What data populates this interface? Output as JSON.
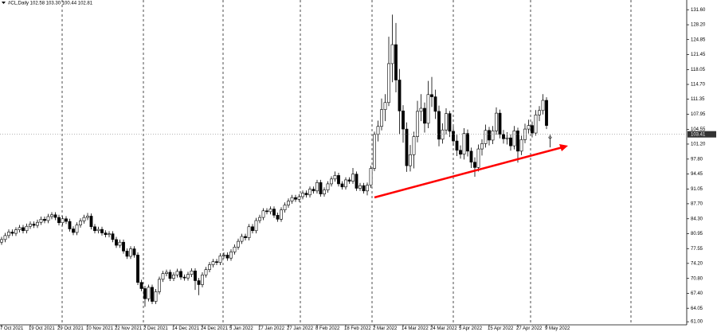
{
  "chart_data": {
    "type": "candlestick",
    "title": "#CL,Daily 102.58 103.30 100.44 102.81",
    "ylim": [
      60.3,
      133.8
    ],
    "yticks": [
      {
        "value": 131.6,
        "label": "131.60"
      },
      {
        "value": 128.2,
        "label": "128.20"
      },
      {
        "value": 124.85,
        "label": "124.85"
      },
      {
        "value": 121.45,
        "label": "121.45"
      },
      {
        "value": 118.05,
        "label": "118.05"
      },
      {
        "value": 114.7,
        "label": "114.70"
      },
      {
        "value": 111.35,
        "label": "111.35"
      },
      {
        "value": 107.95,
        "label": "107.95"
      },
      {
        "value": 104.55,
        "label": "104.55"
      },
      {
        "value": 101.2,
        "label": "101.20"
      },
      {
        "value": 97.8,
        "label": "97.80"
      },
      {
        "value": 94.45,
        "label": "94.45"
      },
      {
        "value": 91.05,
        "label": "91.05"
      },
      {
        "value": 87.7,
        "label": "87.70"
      },
      {
        "value": 84.3,
        "label": "84.30"
      },
      {
        "value": 80.95,
        "label": "80.95"
      },
      {
        "value": 77.55,
        "label": "77.55"
      },
      {
        "value": 74.2,
        "label": "74.20"
      },
      {
        "value": 70.8,
        "label": "70.80"
      },
      {
        "value": 67.4,
        "label": "67.40"
      },
      {
        "value": 64.05,
        "label": "64.05"
      },
      {
        "value": 61.0,
        "label": "61.00"
      }
    ],
    "last_price": {
      "value": 103.41,
      "label": "103.41"
    },
    "categories": [
      "7 Oct 2021",
      null,
      null,
      null,
      null,
      null,
      null,
      null,
      "19 Oct 2021",
      null,
      null,
      null,
      null,
      null,
      null,
      null,
      "29 Oct 2021",
      null,
      null,
      null,
      null,
      null,
      null,
      null,
      "10 Nov 2021",
      null,
      null,
      null,
      null,
      null,
      null,
      null,
      "22 Nov 2021",
      null,
      null,
      null,
      null,
      null,
      null,
      null,
      "2 Dec 2021",
      null,
      null,
      null,
      null,
      null,
      null,
      null,
      "14 Dec 2021",
      null,
      null,
      null,
      null,
      null,
      null,
      null,
      "24 Dec 2021",
      null,
      null,
      null,
      null,
      null,
      null,
      null,
      "5 Jan 2022",
      null,
      null,
      null,
      null,
      null,
      null,
      null,
      "17 Jan 2022",
      null,
      null,
      null,
      null,
      null,
      null,
      null,
      "27 Jan 2022",
      null,
      null,
      null,
      null,
      null,
      null,
      null,
      "8 Feb 2022",
      null,
      null,
      null,
      null,
      null,
      null,
      null,
      "18 Feb 2022",
      null,
      null,
      null,
      null,
      null,
      null,
      null,
      "2 Mar 2022",
      null,
      null,
      null,
      null,
      null,
      null,
      null,
      "14 Mar 2022",
      null,
      null,
      null,
      null,
      null,
      null,
      null,
      "24 Mar 2022",
      null,
      null,
      null,
      null,
      null,
      null,
      null,
      "5 Apr 2022",
      null,
      null,
      null,
      null,
      null,
      null,
      null,
      "15 Apr 2022",
      null,
      null,
      null,
      null,
      null,
      null,
      null,
      "27 Apr 2022",
      null,
      null,
      null,
      null,
      null,
      null,
      null,
      "9 May 2022",
      null
    ],
    "ohlc": [
      [
        79.0,
        80.2,
        78.4,
        79.6
      ],
      [
        79.6,
        81.1,
        79.0,
        80.5
      ],
      [
        80.5,
        81.9,
        79.9,
        81.3
      ],
      [
        81.3,
        81.9,
        80.4,
        81.0
      ],
      [
        81.0,
        82.4,
        80.4,
        81.8
      ],
      [
        81.8,
        82.9,
        81.2,
        82.3
      ],
      [
        82.3,
        82.9,
        81.0,
        81.6
      ],
      [
        81.6,
        83.2,
        81.0,
        82.6
      ],
      [
        82.6,
        83.7,
        82.0,
        83.1
      ],
      [
        83.1,
        83.7,
        82.2,
        82.8
      ],
      [
        82.8,
        84.1,
        82.2,
        83.5
      ],
      [
        83.5,
        84.8,
        82.9,
        84.2
      ],
      [
        84.2,
        84.8,
        83.3,
        83.9
      ],
      [
        83.9,
        85.4,
        83.3,
        84.8
      ],
      [
        84.8,
        85.8,
        84.2,
        85.2
      ],
      [
        85.2,
        85.8,
        84.0,
        84.6
      ],
      [
        84.6,
        85.2,
        82.8,
        83.4
      ],
      [
        83.4,
        84.9,
        82.8,
        84.3
      ],
      [
        84.3,
        84.9,
        83.1,
        83.7
      ],
      [
        83.7,
        84.3,
        81.4,
        82.0
      ],
      [
        82.0,
        82.6,
        80.6,
        81.2
      ],
      [
        81.2,
        83.5,
        80.6,
        82.9
      ],
      [
        82.9,
        84.4,
        82.3,
        83.8
      ],
      [
        83.8,
        85.2,
        83.2,
        84.6
      ],
      [
        84.6,
        85.6,
        84.0,
        84.9
      ],
      [
        84.9,
        85.5,
        81.9,
        82.5
      ],
      [
        82.5,
        83.1,
        81.0,
        81.6
      ],
      [
        81.6,
        82.5,
        81.0,
        81.9
      ],
      [
        81.9,
        82.5,
        80.5,
        81.1
      ],
      [
        81.1,
        81.7,
        80.1,
        80.7
      ],
      [
        80.7,
        81.5,
        80.1,
        80.9
      ],
      [
        80.9,
        81.5,
        79.0,
        79.6
      ],
      [
        79.6,
        80.2,
        77.7,
        78.3
      ],
      [
        78.3,
        79.6,
        77.7,
        79.0
      ],
      [
        79.0,
        79.6,
        76.4,
        77.0
      ],
      [
        77.0,
        77.6,
        75.2,
        75.8
      ],
      [
        75.8,
        78.1,
        75.2,
        77.5
      ],
      [
        77.5,
        78.1,
        75.5,
        76.1
      ],
      [
        76.1,
        76.7,
        69.3,
        69.9
      ],
      [
        69.9,
        70.5,
        67.9,
        68.5
      ],
      [
        68.5,
        69.1,
        64.4,
        66.2
      ],
      [
        66.2,
        69.4,
        65.6,
        68.8
      ],
      [
        68.8,
        69.4,
        65.0,
        65.6
      ],
      [
        65.6,
        68.4,
        65.0,
        67.8
      ],
      [
        67.8,
        71.2,
        67.2,
        70.6
      ],
      [
        70.6,
        72.5,
        70.0,
        71.9
      ],
      [
        71.9,
        72.8,
        71.3,
        72.2
      ],
      [
        72.2,
        72.8,
        70.2,
        70.8
      ],
      [
        70.8,
        72.2,
        70.2,
        71.6
      ],
      [
        71.6,
        73.0,
        71.0,
        72.4
      ],
      [
        72.4,
        73.0,
        70.5,
        71.1
      ],
      [
        71.1,
        71.7,
        70.3,
        70.9
      ],
      [
        70.9,
        72.3,
        70.3,
        71.7
      ],
      [
        71.7,
        73.1,
        71.1,
        72.5
      ],
      [
        72.5,
        73.1,
        68.2,
        70.3
      ],
      [
        70.3,
        70.9,
        67.0,
        69.4
      ],
      [
        69.4,
        72.2,
        68.8,
        71.6
      ],
      [
        71.6,
        73.4,
        71.0,
        72.8
      ],
      [
        72.8,
        74.5,
        72.2,
        73.9
      ],
      [
        73.9,
        75.2,
        73.3,
        74.6
      ],
      [
        74.6,
        75.2,
        73.8,
        74.4
      ],
      [
        74.4,
        76.5,
        73.8,
        75.9
      ],
      [
        75.9,
        76.7,
        75.3,
        76.1
      ],
      [
        76.1,
        76.7,
        74.8,
        75.4
      ],
      [
        75.4,
        77.4,
        74.8,
        76.8
      ],
      [
        76.8,
        78.5,
        76.2,
        77.9
      ],
      [
        77.9,
        79.8,
        77.3,
        79.2
      ],
      [
        79.2,
        80.9,
        78.6,
        80.3
      ],
      [
        80.3,
        80.9,
        79.4,
        80.0
      ],
      [
        80.0,
        83.1,
        79.4,
        82.5
      ],
      [
        82.5,
        83.1,
        81.0,
        81.6
      ],
      [
        81.6,
        84.5,
        81.0,
        83.9
      ],
      [
        83.9,
        85.2,
        83.3,
        84.6
      ],
      [
        84.6,
        86.7,
        84.0,
        86.1
      ],
      [
        86.1,
        86.7,
        85.3,
        85.9
      ],
      [
        85.9,
        87.1,
        85.3,
        86.5
      ],
      [
        86.5,
        87.1,
        84.5,
        85.1
      ],
      [
        85.1,
        85.7,
        83.6,
        84.2
      ],
      [
        84.2,
        86.9,
        83.6,
        86.3
      ],
      [
        86.3,
        88.0,
        85.7,
        87.4
      ],
      [
        87.4,
        88.9,
        86.8,
        88.3
      ],
      [
        88.3,
        89.7,
        87.7,
        89.1
      ],
      [
        89.1,
        89.7,
        88.1,
        88.7
      ],
      [
        88.7,
        89.9,
        88.1,
        89.3
      ],
      [
        89.3,
        90.7,
        88.7,
        90.1
      ],
      [
        90.1,
        90.7,
        89.1,
        89.7
      ],
      [
        89.7,
        91.6,
        89.1,
        91.0
      ],
      [
        91.0,
        91.6,
        90.0,
        90.6
      ],
      [
        90.6,
        93.1,
        90.0,
        92.5
      ],
      [
        92.5,
        93.1,
        89.3,
        89.9
      ],
      [
        89.9,
        91.4,
        89.3,
        90.8
      ],
      [
        90.8,
        92.8,
        90.2,
        92.2
      ],
      [
        92.2,
        93.9,
        91.6,
        93.3
      ],
      [
        93.3,
        95.0,
        92.7,
        94.1
      ],
      [
        94.1,
        94.7,
        91.6,
        92.2
      ],
      [
        92.2,
        92.8,
        90.9,
        91.5
      ],
      [
        91.5,
        93.7,
        90.9,
        93.1
      ],
      [
        93.1,
        93.7,
        92.2,
        92.8
      ],
      [
        92.8,
        95.8,
        92.2,
        94.4
      ],
      [
        94.4,
        95.0,
        90.6,
        91.2
      ],
      [
        91.2,
        92.4,
        90.6,
        91.8
      ],
      [
        91.8,
        92.4,
        90.0,
        90.6
      ],
      [
        90.6,
        92.5,
        89.6,
        91.9
      ],
      [
        91.9,
        96.3,
        91.3,
        95.7
      ],
      [
        95.7,
        104.0,
        95.1,
        103.4
      ],
      [
        103.4,
        106.5,
        101.8,
        105.2
      ],
      [
        105.2,
        111.5,
        104.3,
        109.0
      ],
      [
        109.0,
        112.5,
        106.4,
        110.6
      ],
      [
        110.6,
        125.5,
        109.8,
        119.4
      ],
      [
        119.4,
        130.5,
        115.2,
        123.7
      ],
      [
        123.7,
        128.6,
        112.9,
        115.7
      ],
      [
        115.7,
        118.2,
        103.5,
        108.7
      ],
      [
        108.7,
        110.0,
        101.5,
        104.6
      ],
      [
        104.6,
        106.1,
        94.9,
        96.3
      ],
      [
        96.3,
        101.0,
        95.0,
        98.8
      ],
      [
        98.8,
        104.0,
        95.7,
        102.9
      ],
      [
        102.9,
        111.0,
        101.6,
        108.6
      ],
      [
        108.6,
        112.5,
        106.4,
        109.3
      ],
      [
        109.3,
        110.6,
        103.8,
        105.9
      ],
      [
        105.9,
        115.5,
        104.8,
        112.4
      ],
      [
        112.4,
        116.4,
        109.6,
        111.9
      ],
      [
        111.9,
        113.5,
        106.9,
        108.6
      ],
      [
        108.6,
        109.9,
        100.7,
        102.3
      ],
      [
        102.3,
        105.9,
        101.3,
        104.4
      ],
      [
        104.4,
        109.3,
        103.4,
        108.1
      ],
      [
        108.1,
        108.7,
        102.8,
        104.1
      ],
      [
        104.1,
        105.2,
        100.8,
        101.9
      ],
      [
        101.9,
        103.3,
        98.5,
        99.8
      ],
      [
        99.8,
        100.9,
        97.9,
        98.9
      ],
      [
        98.9,
        104.8,
        97.7,
        103.6
      ],
      [
        103.6,
        104.5,
        98.4,
        99.6
      ],
      [
        99.6,
        100.4,
        95.8,
        97.1
      ],
      [
        97.1,
        98.2,
        93.8,
        95.9
      ],
      [
        95.9,
        101.1,
        95.0,
        100.1
      ],
      [
        100.1,
        102.3,
        98.6,
        101.3
      ],
      [
        101.3,
        105.6,
        100.4,
        104.3
      ],
      [
        104.3,
        105.1,
        100.9,
        102.1
      ],
      [
        102.1,
        105.3,
        101.2,
        104.2
      ],
      [
        104.2,
        109.5,
        103.3,
        108.2
      ],
      [
        108.2,
        109.0,
        102.5,
        103.4
      ],
      [
        103.4,
        104.4,
        101.3,
        102.4
      ],
      [
        102.4,
        103.9,
        101.1,
        102.6
      ],
      [
        102.6,
        103.4,
        99.7,
        100.8
      ],
      [
        100.8,
        105.3,
        100.0,
        104.2
      ],
      [
        104.2,
        104.9,
        97.0,
        99.6
      ],
      [
        99.6,
        103.1,
        98.7,
        102.2
      ],
      [
        102.2,
        105.8,
        101.4,
        104.6
      ],
      [
        104.6,
        106.7,
        103.6,
        105.4
      ],
      [
        105.4,
        106.3,
        102.7,
        103.7
      ],
      [
        103.7,
        108.9,
        103.1,
        107.8
      ],
      [
        107.8,
        109.8,
        106.4,
        108.8
      ],
      [
        108.8,
        112.5,
        107.9,
        111.1
      ],
      [
        111.1,
        111.8,
        104.6,
        105.4
      ],
      [
        102.58,
        103.3,
        100.44,
        102.81
      ]
    ],
    "up_color": "#ffffff",
    "down_color": "#000000"
  }
}
